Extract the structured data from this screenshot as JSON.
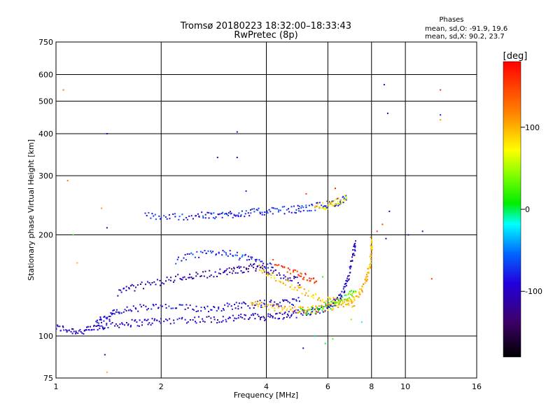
{
  "chart_data": {
    "type": "scatter",
    "title": "Tromsø 20180223 18:32:00–18:33:43",
    "subtitle": "RwPretec (8p)",
    "xlabel": "Frequency [MHz]",
    "ylabel": "Stationary phase Virtual Height [km]",
    "x_scale": "log",
    "y_scale": "log",
    "xlim": [
      1,
      16
    ],
    "ylim": [
      75,
      750
    ],
    "x_ticks": [
      1,
      2,
      4,
      6,
      8,
      10,
      16
    ],
    "y_ticks": [
      75,
      100,
      200,
      300,
      400,
      500,
      600,
      750
    ],
    "grid": true,
    "stats": {
      "heading": "Phases",
      "line_o": "mean, sd,O: -91.9, 19.6",
      "line_x": "mean, sd,X:  90.2, 23.7"
    },
    "colorbar": {
      "label": "[deg]",
      "ticks": [
        100,
        0,
        -100
      ],
      "range": [
        -180,
        180
      ]
    },
    "traces": [
      {
        "phase": -100,
        "points": [
          [
            1.0,
            106
          ],
          [
            1.1,
            104
          ],
          [
            1.2,
            103
          ],
          [
            1.3,
            106
          ],
          [
            1.4,
            108
          ],
          [
            1.6,
            109
          ],
          [
            1.8,
            110
          ],
          [
            2.0,
            111
          ],
          [
            2.4,
            112
          ],
          [
            2.8,
            112
          ],
          [
            3.2,
            113
          ],
          [
            3.6,
            114
          ],
          [
            4.0,
            114
          ],
          [
            4.4,
            115
          ],
          [
            4.8,
            116
          ],
          [
            5.2,
            118
          ],
          [
            5.6,
            119
          ],
          [
            6.0,
            122
          ],
          [
            6.4,
            128
          ],
          [
            6.7,
            138
          ],
          [
            6.9,
            152
          ],
          [
            7.1,
            175
          ],
          [
            7.2,
            190
          ]
        ]
      },
      {
        "phase": -90,
        "points": [
          [
            1.3,
            110
          ],
          [
            1.4,
            114
          ],
          [
            1.5,
            118
          ],
          [
            1.7,
            121
          ],
          [
            2.0,
            122
          ],
          [
            2.4,
            121
          ],
          [
            2.8,
            121
          ],
          [
            3.2,
            123
          ],
          [
            3.6,
            124
          ],
          [
            4.0,
            125
          ],
          [
            4.5,
            125
          ],
          [
            5.0,
            128
          ]
        ]
      },
      {
        "phase": -110,
        "points": [
          [
            1.5,
            135
          ],
          [
            1.7,
            140
          ],
          [
            2.0,
            145
          ],
          [
            2.3,
            150
          ],
          [
            2.6,
            152
          ],
          [
            3.0,
            155
          ],
          [
            3.3,
            157
          ],
          [
            3.6,
            160
          ],
          [
            4.0,
            158
          ],
          [
            4.5,
            150
          ],
          [
            5.0,
            145
          ]
        ]
      },
      {
        "phase": -80,
        "points": [
          [
            1.8,
            228
          ],
          [
            2.1,
            226
          ],
          [
            2.5,
            228
          ],
          [
            2.8,
            228
          ],
          [
            3.1,
            230
          ],
          [
            3.4,
            232
          ],
          [
            3.8,
            234
          ],
          [
            4.2,
            236
          ],
          [
            4.8,
            238
          ],
          [
            5.2,
            240
          ],
          [
            5.8,
            245
          ],
          [
            6.4,
            250
          ],
          [
            6.8,
            258
          ]
        ]
      },
      {
        "phase": -80,
        "points": [
          [
            2.2,
            168
          ],
          [
            2.6,
            175
          ],
          [
            3.0,
            178
          ],
          [
            3.4,
            172
          ],
          [
            3.8,
            165
          ],
          [
            4.2,
            160
          ]
        ]
      },
      {
        "phase": 100,
        "points": [
          [
            3.6,
            125
          ],
          [
            4.0,
            122
          ],
          [
            4.5,
            120
          ],
          [
            5.0,
            120
          ],
          [
            5.5,
            120
          ],
          [
            6.0,
            121
          ],
          [
            6.5,
            124
          ],
          [
            7.0,
            128
          ],
          [
            7.4,
            135
          ],
          [
            7.7,
            145
          ],
          [
            7.9,
            160
          ],
          [
            8.0,
            180
          ],
          [
            8.0,
            195
          ]
        ]
      },
      {
        "phase": 90,
        "points": [
          [
            3.8,
            160
          ],
          [
            4.2,
            150
          ],
          [
            4.8,
            140
          ],
          [
            5.4,
            132
          ],
          [
            6.0,
            128
          ],
          [
            6.6,
            126
          ],
          [
            7.2,
            124
          ]
        ]
      },
      {
        "phase": 150,
        "points": [
          [
            4.2,
            165
          ],
          [
            4.8,
            155
          ],
          [
            5.2,
            150
          ],
          [
            5.6,
            145
          ]
        ]
      },
      {
        "phase": 80,
        "points": [
          [
            5.5,
            240
          ],
          [
            6.0,
            245
          ],
          [
            6.4,
            250
          ],
          [
            6.8,
            258
          ]
        ]
      },
      {
        "phase": 20,
        "points": [
          [
            5.0,
            118
          ],
          [
            5.6,
            120
          ],
          [
            6.2,
            124
          ],
          [
            6.8,
            130
          ],
          [
            7.2,
            140
          ]
        ]
      }
    ],
    "outliers": [
      [
        1.05,
        540,
        120
      ],
      [
        1.08,
        290,
        120
      ],
      [
        1.12,
        200,
        20
      ],
      [
        1.15,
        165,
        100
      ],
      [
        1.35,
        240,
        110
      ],
      [
        1.4,
        210,
        -110
      ],
      [
        1.4,
        400,
        -100
      ],
      [
        1.38,
        88,
        -100
      ],
      [
        1.4,
        78,
        100
      ],
      [
        2.9,
        340,
        -100
      ],
      [
        3.3,
        340,
        -110
      ],
      [
        3.3,
        405,
        -90
      ],
      [
        3.5,
        270,
        -80
      ],
      [
        5.2,
        265,
        150
      ],
      [
        6.3,
        275,
        160
      ],
      [
        8.7,
        560,
        -100
      ],
      [
        8.9,
        460,
        -110
      ],
      [
        8.8,
        195,
        -110
      ],
      [
        8.3,
        205,
        150
      ],
      [
        8.6,
        215,
        150
      ],
      [
        9.0,
        235,
        -100
      ],
      [
        10.2,
        200,
        -110
      ],
      [
        11.2,
        205,
        -100
      ],
      [
        12.6,
        540,
        160
      ],
      [
        12.6,
        455,
        -80
      ],
      [
        12.6,
        440,
        110
      ],
      [
        11.9,
        148,
        160
      ],
      [
        6.2,
        98,
        30
      ],
      [
        5.9,
        95,
        0
      ],
      [
        5.5,
        100,
        0
      ],
      [
        5.1,
        92,
        -110
      ],
      [
        7.5,
        110,
        -20
      ],
      [
        7.0,
        112,
        40
      ],
      [
        5.8,
        150,
        20
      ]
    ]
  }
}
